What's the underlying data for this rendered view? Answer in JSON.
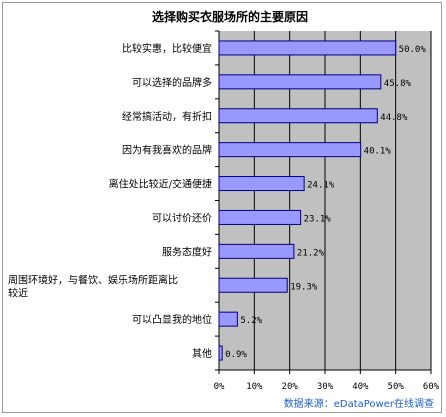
{
  "chart_data": {
    "type": "bar",
    "orientation": "horizontal",
    "title": "选择购买衣服场所的主要原因",
    "categories": [
      [
        "比较实惠，比较便宜"
      ],
      [
        "可以选择的品牌多"
      ],
      [
        "经常搞活动，有折扣"
      ],
      [
        "因为有我喜欢的品牌"
      ],
      [
        "离住处比较近/交通便捷"
      ],
      [
        "可以讨价还价"
      ],
      [
        "服务态度好"
      ],
      [
        "周围环境好，与餐饮、娱乐场所距离比",
        "较近"
      ],
      [
        "可以凸显我的地位"
      ],
      [
        "其他"
      ]
    ],
    "values": [
      50.0,
      45.8,
      44.8,
      40.1,
      24.1,
      23.1,
      21.2,
      19.3,
      5.2,
      0.9
    ],
    "value_labels": [
      "50.0%",
      "45.8%",
      "44.8%",
      "40.1%",
      "24.1%",
      "23.1%",
      "21.2%",
      "19.3%",
      "5.2%",
      "0.9%"
    ],
    "xlim": [
      0,
      60
    ],
    "xticks": [
      "0%",
      "10%",
      "20%",
      "30%",
      "40%",
      "50%",
      "60%"
    ],
    "grid": true,
    "colors": {
      "bar_fill": "#9999ff",
      "bar_stroke": "#000080",
      "plot_bg": "#c0c0c0",
      "grid": "#000000"
    }
  },
  "source": "数据来源：eDataPower在线调查"
}
